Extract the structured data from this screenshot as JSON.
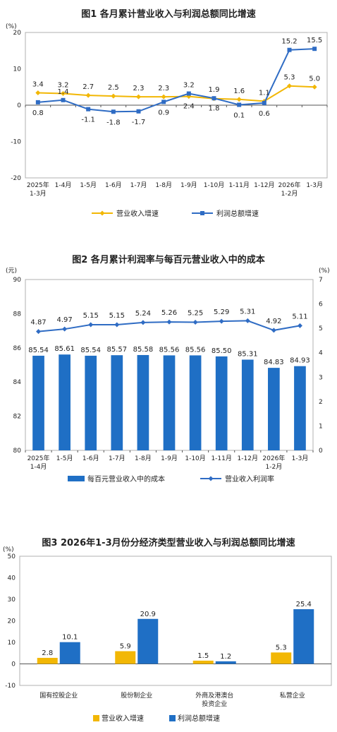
{
  "chart_data": [
    {
      "type": "line",
      "title": "图1  各月累计营业收入与利润总额同比增速",
      "yunit": "(%)",
      "ylim": [
        -20,
        20
      ],
      "yticks": [
        "20",
        "10",
        "0",
        "-10",
        "-20"
      ],
      "categories": [
        [
          "2025年",
          "1-3月"
        ],
        [
          "1-4月"
        ],
        [
          "1-5月"
        ],
        [
          "1-6月"
        ],
        [
          "1-7月"
        ],
        [
          "1-8月"
        ],
        [
          "1-9月"
        ],
        [
          "1-10月"
        ],
        [
          "1-11月"
        ],
        [
          "1-12月"
        ],
        [
          "2026年",
          "1-2月"
        ],
        [
          "1-3月"
        ]
      ],
      "series": [
        {
          "name": "营业收入增速",
          "color": "#f2b705",
          "values": [
            3.4,
            3.2,
            2.7,
            2.5,
            2.3,
            2.3,
            2.4,
            1.8,
            1.6,
            1.1,
            5.3,
            5.0
          ],
          "labels": [
            "3.4",
            "3.2",
            "2.7",
            "2.5",
            "2.3",
            "2.3",
            "2.4",
            "1.8",
            "1.6",
            "1.1",
            "5.3",
            "5.0"
          ]
        },
        {
          "name": "利润总额增速",
          "color": "#2f6cc4",
          "values": [
            0.8,
            1.4,
            -1.1,
            -1.8,
            -1.7,
            0.9,
            3.2,
            1.9,
            0.1,
            0.6,
            15.2,
            15.5
          ],
          "labels": [
            "0.8",
            "1.4",
            "-1.1",
            "-1.8",
            "-1.7",
            "0.9",
            "3.2",
            "1.9",
            "0.1",
            "0.6",
            "15.2",
            "15.5"
          ]
        }
      ],
      "legend": "bottom"
    },
    {
      "type": "bar",
      "title": "图2  各月累计利润率与每百元营业收入中的成本",
      "yunit_left": "(元)",
      "yunit_right": "(%)",
      "ylim_left": [
        80,
        90
      ],
      "ylim_right": [
        0,
        7
      ],
      "yticks_left": [
        "90",
        "88",
        "86",
        "84",
        "82",
        "80"
      ],
      "yticks_right": [
        "7",
        "6",
        "5",
        "4",
        "3",
        "2",
        "1",
        "0"
      ],
      "categories": [
        [
          "2025年",
          "1-4月"
        ],
        [
          "1-5月"
        ],
        [
          "1-6月"
        ],
        [
          "1-7月"
        ],
        [
          "1-8月"
        ],
        [
          "1-9月"
        ],
        [
          "1-10月"
        ],
        [
          "1-11月"
        ],
        [
          "1-12月"
        ],
        [
          "2026年",
          "1-2月"
        ],
        [
          "1-3月"
        ]
      ],
      "series": [
        {
          "name": "每百元营业收入中的成本",
          "kind": "bar",
          "axis": "left",
          "color": "#1f6fc5",
          "values": [
            85.54,
            85.61,
            85.54,
            85.57,
            85.58,
            85.56,
            85.56,
            85.5,
            85.31,
            84.83,
            84.93
          ],
          "labels": [
            "85.54",
            "85.61",
            "85.54",
            "85.57",
            "85.58",
            "85.56",
            "85.56",
            "85.50",
            "85.31",
            "84.83",
            "84.93"
          ]
        },
        {
          "name": "营业收入利润率",
          "kind": "line",
          "axis": "right",
          "color": "#2f6cc4",
          "values": [
            4.87,
            4.97,
            5.15,
            5.15,
            5.24,
            5.26,
            5.25,
            5.29,
            5.31,
            4.92,
            5.11
          ],
          "labels": [
            "4.87",
            "4.97",
            "5.15",
            "5.15",
            "5.24",
            "5.26",
            "5.25",
            "5.29",
            "5.31",
            "4.92",
            "5.11"
          ]
        }
      ],
      "legend": "bottom"
    },
    {
      "type": "bar",
      "title": "图3  2026年1-3月份分经济类型营业收入与利润总额同比增速",
      "yunit": "(%)",
      "ylim": [
        -10,
        50
      ],
      "yticks": [
        "50",
        "40",
        "30",
        "20",
        "10",
        "0",
        "-10"
      ],
      "categories": [
        [
          "国有控股企业"
        ],
        [
          "股份制企业"
        ],
        [
          "外商及港澳台",
          "投资企业"
        ],
        [
          "私营企业"
        ]
      ],
      "series": [
        {
          "name": "营业收入增速",
          "color": "#f2b705",
          "values": [
            2.8,
            5.9,
            1.5,
            5.3
          ],
          "labels": [
            "2.8",
            "5.9",
            "1.5",
            "5.3"
          ]
        },
        {
          "name": "利润总额增速",
          "color": "#1f6fc5",
          "values": [
            10.1,
            20.9,
            1.2,
            25.4
          ],
          "labels": [
            "10.1",
            "20.9",
            "1.2",
            "25.4"
          ]
        }
      ],
      "legend": "bottom"
    }
  ]
}
